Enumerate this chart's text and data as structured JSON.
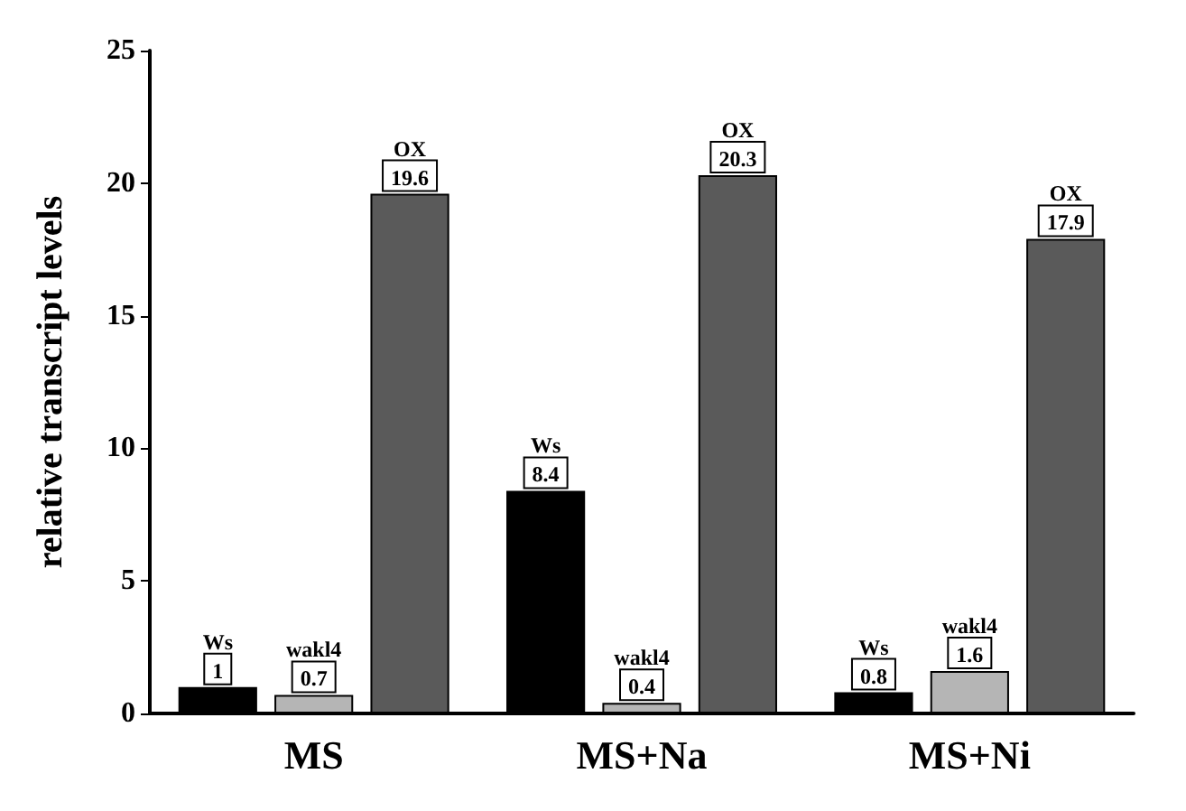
{
  "chart_data": {
    "type": "bar",
    "ylabel": "relative transcript levels",
    "categories": [
      "MS",
      "MS+Na",
      "MS+Ni"
    ],
    "series": [
      {
        "name": "Ws",
        "color": "#000000",
        "values": [
          1,
          8.4,
          0.8
        ]
      },
      {
        "name": "wakl4",
        "color": "#b5b5b5",
        "values": [
          0.7,
          0.4,
          1.6
        ]
      },
      {
        "name": "OX",
        "color": "#5a5a5a",
        "values": [
          19.6,
          20.3,
          17.9
        ]
      }
    ],
    "ylim": [
      0,
      25
    ],
    "yticks": [
      0,
      5,
      10,
      15,
      20,
      25
    ],
    "grid": false,
    "legend": false,
    "data_labels": true
  }
}
